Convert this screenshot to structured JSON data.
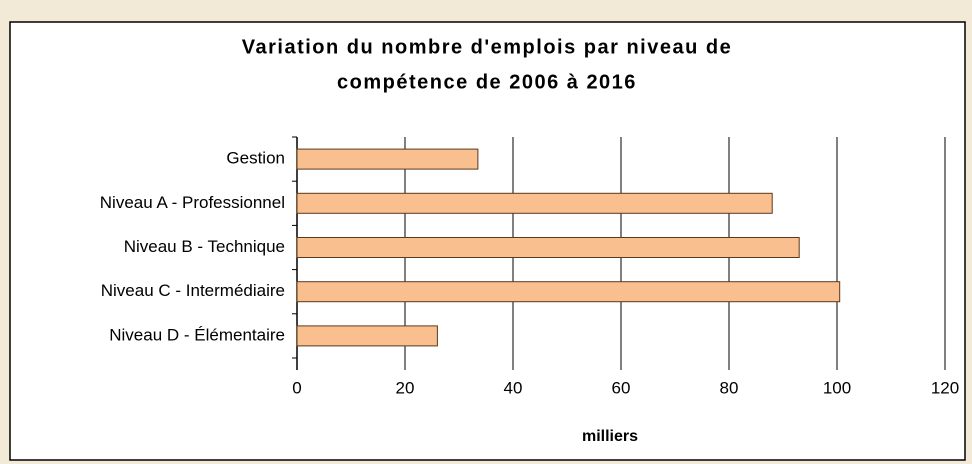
{
  "chart_data": {
    "type": "bar",
    "orientation": "horizontal",
    "title": [
      "Variation du nombre d'emplois par niveau de",
      "compétence de 2006 à 2016"
    ],
    "categories": [
      "Gestion",
      "Niveau A - Professionnel",
      "Niveau B - Technique",
      "Niveau C - Intermédiaire",
      "Niveau D - Élémentaire"
    ],
    "values": [
      33.5,
      88,
      93,
      100.5,
      26
    ],
    "color": "#f9bf8f",
    "xlabel": "milliers",
    "xlim": [
      0,
      120
    ],
    "xticks": [
      0,
      20,
      40,
      60,
      80,
      100,
      120
    ],
    "grid": true
  }
}
